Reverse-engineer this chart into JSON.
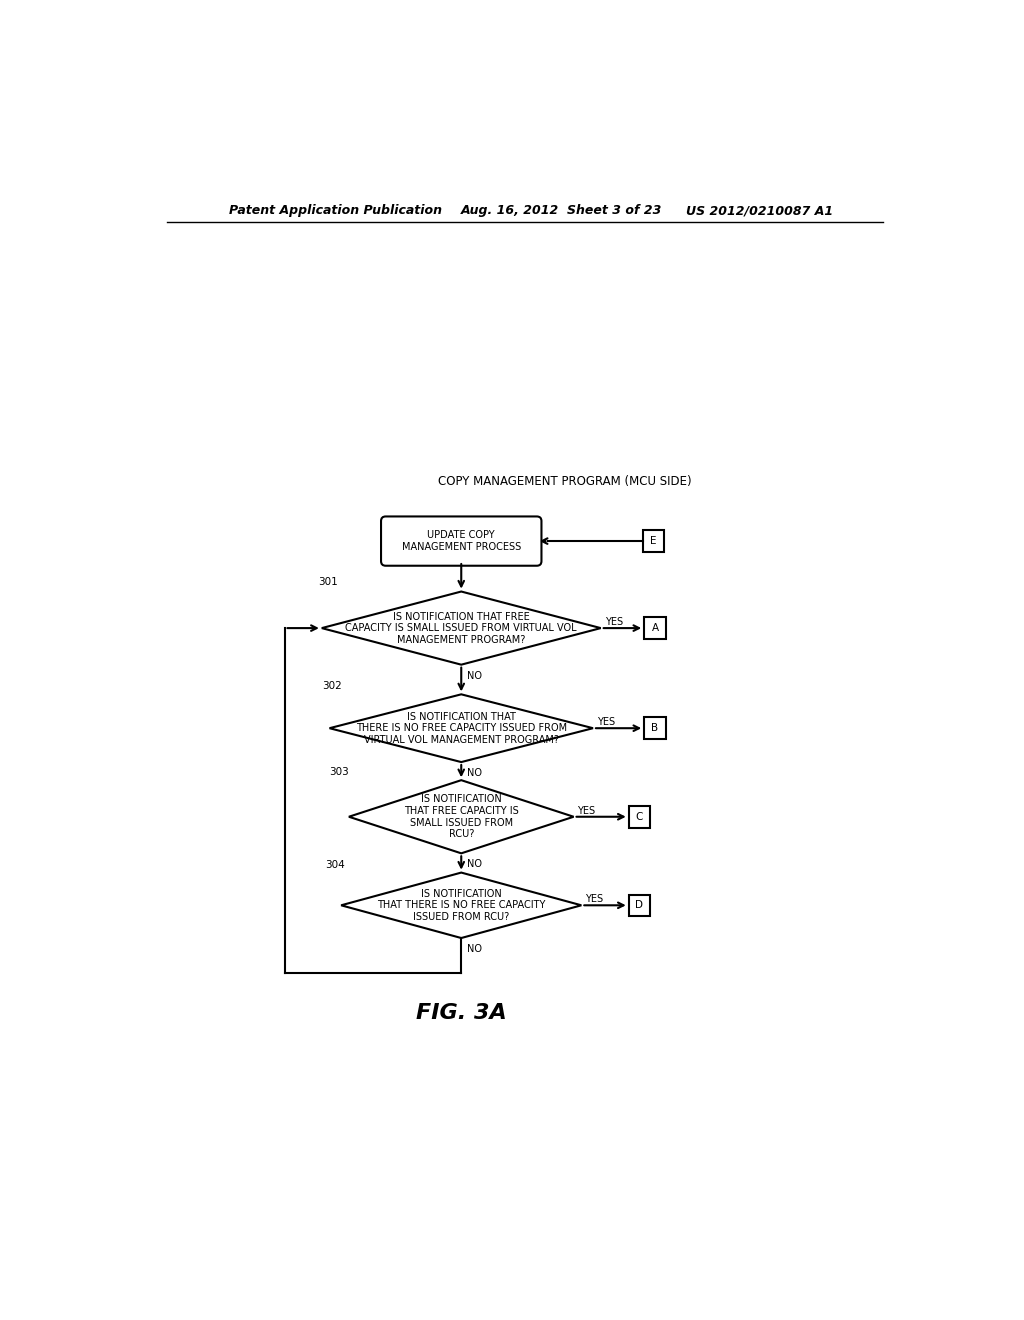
{
  "bg_color": "#ffffff",
  "header_left": "Patent Application Publication",
  "header_mid": "Aug. 16, 2012  Sheet 3 of 23",
  "header_right": "US 2012/0210087 A1",
  "title_label": "COPY MANAGEMENT PROGRAM (MCU SIDE)",
  "start_label": "UPDATE COPY\nMANAGEMENT PROCESS",
  "diamond1_label": "IS NOTIFICATION THAT FREE\nCAPACITY IS SMALL ISSUED FROM VIRTUAL VOL\nMANAGEMENT PROGRAM?",
  "diamond2_label": "IS NOTIFICATION THAT\nTHERE IS NO FREE CAPACITY ISSUED FROM\nVIRTUAL VOL MANAGEMENT PROGRAM?",
  "diamond3_label": "IS NOTIFICATION\nTHAT FREE CAPACITY IS\nSMALL ISSUED FROM\nRCU?",
  "diamond4_label": "IS NOTIFICATION\nTHAT THERE IS NO FREE CAPACITY\nISSUED FROM RCU?",
  "label_301": "301",
  "label_302": "302",
  "label_303": "303",
  "label_304": "304",
  "connector_E": "E",
  "connector_A": "A",
  "connector_B": "B",
  "connector_C": "C",
  "connector_D": "D",
  "fig_label": "FIG. 3A",
  "line_color": "#000000",
  "text_color": "#000000",
  "font_size_header": 9,
  "font_size_title": 8.5,
  "font_size_box": 7.0,
  "font_size_connector": 7.5,
  "font_size_label": 7.5,
  "font_size_yes_no": 7.0,
  "font_size_fig": 16
}
